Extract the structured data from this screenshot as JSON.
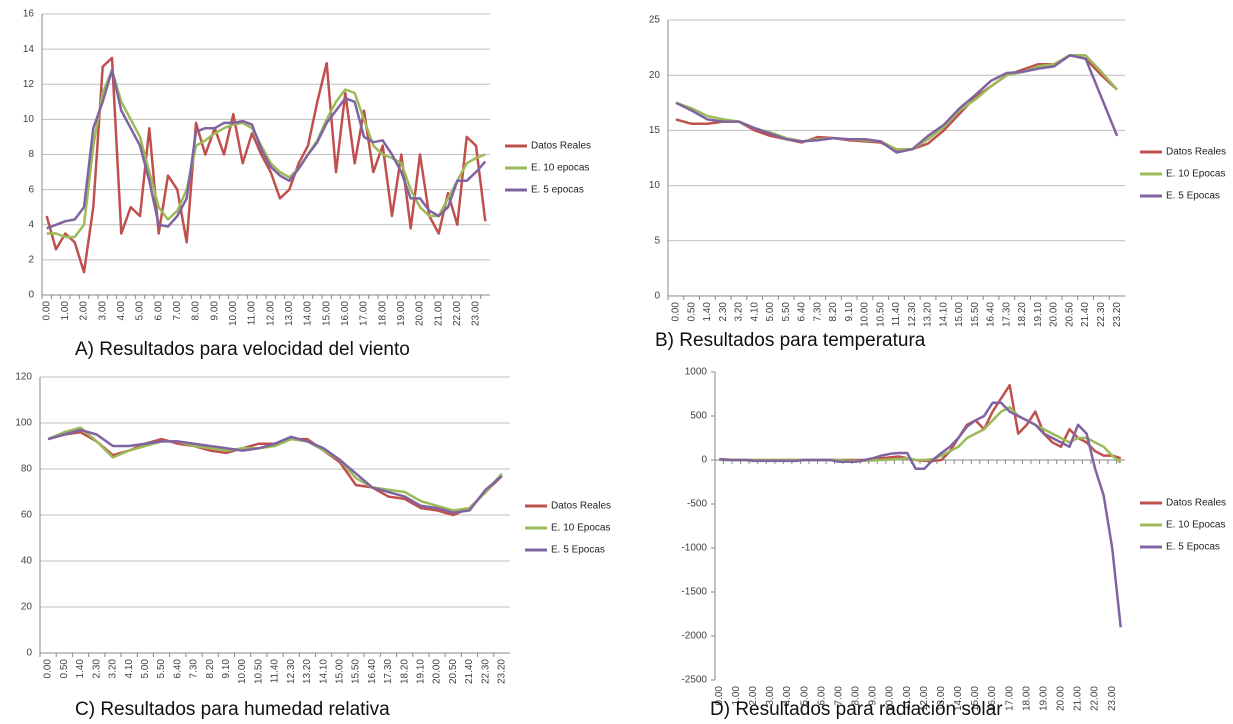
{
  "chart_data": [
    {
      "type": "line",
      "caption": "A) Resultados para velocidad del viento",
      "categories": [
        "0.00",
        null,
        "1.00",
        null,
        "2.00",
        null,
        "3.00",
        null,
        "4.00",
        null,
        "5.00",
        null,
        "6.00",
        null,
        "7.00",
        null,
        "8.00",
        null,
        "9.00",
        null,
        "10.00",
        null,
        "11.00",
        null,
        "12.00",
        null,
        "13.00",
        null,
        "14.00",
        null,
        "15.00",
        null,
        "16.00",
        null,
        "17.00",
        null,
        "18.00",
        null,
        "19.00",
        null,
        "20.00",
        null,
        "21.00",
        null,
        "22.00",
        null,
        "23.00",
        null
      ],
      "ylim": [
        0,
        16
      ],
      "yticks": [
        0,
        2,
        4,
        6,
        8,
        10,
        12,
        14,
        16
      ],
      "grid": true,
      "series": [
        {
          "name": "Datos Reales",
          "color": "#c0504d",
          "values": [
            4.5,
            2.6,
            3.5,
            3.0,
            1.3,
            5.0,
            13.0,
            13.5,
            3.5,
            5.0,
            4.5,
            9.5,
            3.5,
            6.8,
            6.0,
            3.0,
            9.8,
            8.0,
            9.5,
            8.0,
            10.3,
            7.5,
            9.2,
            8.0,
            7.0,
            5.5,
            6.0,
            7.5,
            8.5,
            11.0,
            13.2,
            7.0,
            11.5,
            7.5,
            10.5,
            7.0,
            8.5,
            4.5,
            8.0,
            3.8,
            8.0,
            4.5,
            3.5,
            5.8,
            4.0,
            9.0,
            8.5,
            4.2
          ]
        },
        {
          "name": "E. 10 epocas",
          "color": "#9bbb59",
          "values": [
            3.5,
            3.5,
            3.3,
            3.3,
            4.0,
            8.5,
            11.5,
            12.8,
            11.0,
            10.0,
            9.0,
            7.0,
            5.0,
            4.3,
            4.8,
            6.0,
            8.5,
            8.8,
            9.2,
            9.5,
            9.7,
            9.8,
            9.5,
            8.5,
            7.5,
            7.0,
            6.7,
            7.2,
            8.0,
            8.8,
            10.0,
            11.0,
            11.7,
            11.5,
            10.0,
            8.5,
            8.0,
            7.8,
            7.5,
            6.0,
            5.0,
            4.5,
            4.5,
            5.5,
            6.5,
            7.5,
            7.8,
            8.0
          ]
        },
        {
          "name": "E. 5 epocas",
          "color": "#8064a2",
          "values": [
            3.8,
            4.0,
            4.2,
            4.3,
            5.0,
            9.5,
            11.0,
            12.8,
            10.5,
            9.5,
            8.5,
            6.5,
            4.0,
            3.9,
            4.5,
            5.5,
            9.3,
            9.5,
            9.5,
            9.8,
            9.8,
            9.9,
            9.7,
            8.3,
            7.3,
            6.8,
            6.5,
            7.2,
            8.0,
            8.7,
            9.8,
            10.5,
            11.2,
            11.0,
            9.0,
            8.7,
            8.8,
            8.0,
            7.0,
            5.5,
            5.5,
            4.8,
            4.5,
            5.0,
            6.5,
            6.5,
            7.0,
            7.6
          ]
        }
      ]
    },
    {
      "type": "line",
      "caption": "B) Resultados para temperatura",
      "categories": [
        "0.00",
        "0.50",
        "1.40",
        "2.30",
        "3.20",
        "4.10",
        "5.00",
        "5.50",
        "6.40",
        "7.30",
        "8.20",
        "9.10",
        "10.00",
        "10.50",
        "11.40",
        "12.30",
        "13.20",
        "14.10",
        "15.00",
        "15.50",
        "16.40",
        "17.30",
        "18.20",
        "19.10",
        "20.00",
        "20.50",
        "21.40",
        "22.30",
        "23.20"
      ],
      "ylim": [
        0,
        25
      ],
      "yticks": [
        0,
        5,
        10,
        15,
        20,
        25
      ],
      "grid": true,
      "series": [
        {
          "name": "Datos Reales",
          "color": "#c0504d",
          "values": [
            16.0,
            15.6,
            15.6,
            15.8,
            15.8,
            15.0,
            14.5,
            14.2,
            13.9,
            14.4,
            14.3,
            14.1,
            14.0,
            13.9,
            13.2,
            13.3,
            13.8,
            15.0,
            16.5,
            18.0,
            19.0,
            20.0,
            20.5,
            21.0,
            21.0,
            21.8,
            21.5,
            20.0,
            18.7
          ]
        },
        {
          "name": "E. 10 Epocas",
          "color": "#9bbb59",
          "values": [
            17.5,
            17.0,
            16.3,
            16.0,
            15.8,
            15.2,
            14.8,
            14.3,
            14.0,
            14.2,
            14.3,
            14.2,
            14.1,
            14.0,
            13.3,
            13.3,
            14.2,
            15.3,
            16.8,
            17.8,
            19.0,
            20.0,
            20.3,
            20.8,
            21.0,
            21.8,
            21.8,
            20.3,
            18.7
          ]
        },
        {
          "name": "E. 5 Epocas",
          "color": "#8064a2",
          "values": [
            17.5,
            16.8,
            16.0,
            15.8,
            15.8,
            15.2,
            14.7,
            14.2,
            14.0,
            14.1,
            14.3,
            14.2,
            14.2,
            14.0,
            13.0,
            13.3,
            14.5,
            15.5,
            17.0,
            18.2,
            19.5,
            20.2,
            20.3,
            20.6,
            20.8,
            21.8,
            21.5,
            18.0,
            14.5
          ]
        }
      ]
    },
    {
      "type": "line",
      "caption": "C) Resultados para humedad relativa",
      "categories": [
        "0.00",
        "0.50",
        "1.40",
        "2.30",
        "3.20",
        "4.10",
        "5.00",
        "5.50",
        "6.40",
        "7.30",
        "8.20",
        "9.10",
        "10.00",
        "10.50",
        "11.40",
        "12.30",
        "13.20",
        "14.10",
        "15.00",
        "15.50",
        "16.40",
        "17.30",
        "18.20",
        "19.10",
        "20.00",
        "20.50",
        "21.40",
        "22.30",
        "23.20"
      ],
      "ylim": [
        0,
        120
      ],
      "yticks": [
        0,
        20,
        40,
        60,
        80,
        100,
        120
      ],
      "grid": true,
      "series": [
        {
          "name": "Datos Reales",
          "color": "#c0504d",
          "values": [
            93,
            95,
            96,
            92,
            86,
            88,
            91,
            93,
            91,
            90,
            88,
            87,
            89,
            91,
            91,
            93,
            93,
            88,
            83,
            73,
            72,
            68,
            67,
            63,
            62,
            60,
            63,
            70,
            77
          ]
        },
        {
          "name": "E. 10 Epocas",
          "color": "#9bbb59",
          "values": [
            93,
            96,
            98,
            92,
            85,
            88,
            90,
            92,
            92,
            90,
            89,
            88,
            89,
            89,
            90,
            93,
            92,
            88,
            84,
            76,
            72,
            71,
            70,
            66,
            64,
            62,
            63,
            70,
            78
          ]
        },
        {
          "name": "E. 5 Epocas",
          "color": "#8064a2",
          "values": [
            93,
            95,
            97,
            95,
            90,
            90,
            91,
            92,
            92,
            91,
            90,
            89,
            88,
            89,
            91,
            94,
            92,
            89,
            84,
            78,
            72,
            70,
            68,
            64,
            63,
            61,
            62,
            71,
            77
          ]
        }
      ]
    },
    {
      "type": "line",
      "caption": "D) Resultados para radiación solar",
      "categories": [
        "0.00",
        null,
        "1.00",
        null,
        "2.00",
        null,
        "3.00",
        null,
        "4.00",
        null,
        "5.00",
        null,
        "6.00",
        null,
        "7.00",
        null,
        "8.00",
        null,
        "9.00",
        null,
        "10.00",
        null,
        "11.00",
        null,
        "12.00",
        null,
        "13.00",
        null,
        "14.00",
        null,
        "15.00",
        null,
        "16.00",
        null,
        "17.00",
        null,
        "18.00",
        null,
        "19.00",
        null,
        "20.00",
        null,
        "21.00",
        null,
        "22.00",
        null,
        "23.00",
        null
      ],
      "ylim": [
        -2500,
        1000
      ],
      "yticks": [
        -2500,
        -2000,
        -1500,
        -1000,
        -500,
        0,
        500,
        1000
      ],
      "grid": false,
      "series": [
        {
          "name": "Datos Reales",
          "color": "#c0504d",
          "values": [
            10,
            5,
            0,
            0,
            0,
            0,
            0,
            0,
            0,
            0,
            0,
            0,
            0,
            0,
            0,
            0,
            0,
            0,
            10,
            20,
            30,
            40,
            20,
            0,
            -10,
            -10,
            0,
            100,
            250,
            400,
            450,
            350,
            550,
            700,
            850,
            300,
            400,
            550,
            300,
            200,
            150,
            350,
            250,
            200,
            100,
            50,
            50,
            20
          ]
        },
        {
          "name": "E. 10 Epocas",
          "color": "#9bbb59",
          "values": [
            0,
            0,
            0,
            0,
            0,
            0,
            0,
            0,
            0,
            0,
            0,
            0,
            0,
            0,
            0,
            -10,
            -10,
            -10,
            -5,
            0,
            5,
            10,
            20,
            0,
            0,
            10,
            50,
            100,
            150,
            250,
            300,
            350,
            450,
            550,
            600,
            500,
            450,
            400,
            350,
            300,
            250,
            200,
            250,
            250,
            200,
            150,
            50,
            -30
          ]
        },
        {
          "name": "E. 5 Epocas",
          "color": "#8064a2",
          "values": [
            10,
            0,
            0,
            0,
            -10,
            -10,
            -10,
            -10,
            -10,
            -10,
            0,
            0,
            0,
            0,
            -20,
            -20,
            -20,
            0,
            20,
            50,
            70,
            80,
            80,
            -100,
            -100,
            0,
            80,
            150,
            250,
            380,
            450,
            500,
            650,
            650,
            550,
            500,
            450,
            400,
            300,
            250,
            200,
            150,
            400,
            300,
            -100,
            -400,
            -1000,
            -1900
          ]
        }
      ]
    }
  ]
}
